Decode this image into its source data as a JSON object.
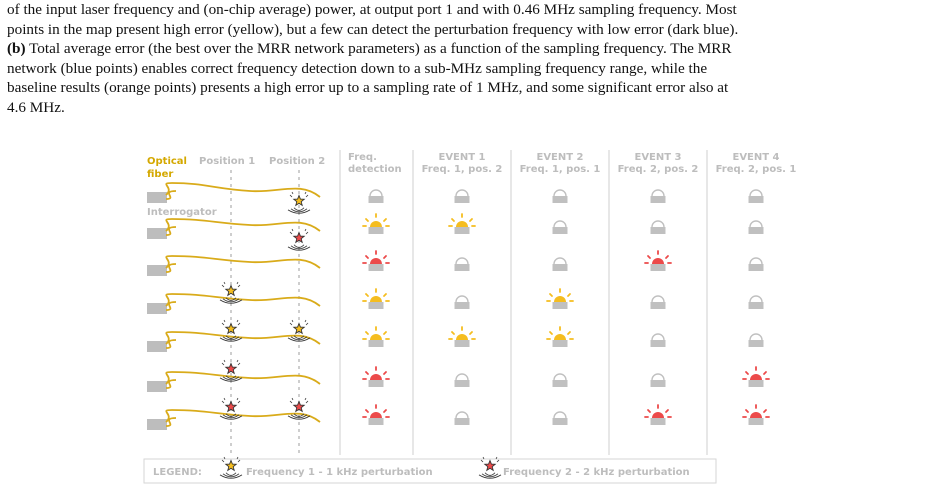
{
  "caption": {
    "line1": "of the input laser frequency and (on-chip average) power, at output port 1 and with 0.46 MHz sampling frequency. Most",
    "line2": "points in the map present high error (yellow), but a few can detect the perturbation frequency with low error (dark blue).",
    "line3_bold": "(b)",
    "line3": " Total average error (the best over the MRR network parameters) as a function of the sampling frequency. The MRR",
    "line4": "network (blue points) enables correct frequency detection down to a sub-MHz sampling frequency range, while the",
    "line5": "baseline results (orange points) presents a high error up to a sampling rate of 1 MHz, and some significant error also at",
    "line6": "4.6 MHz."
  },
  "figure": {
    "headers": {
      "optical_fiber_1": "Optical",
      "optical_fiber_2": "fiber",
      "interrogator": "Interrogator",
      "position1": "Position 1",
      "position2": "Position 2",
      "freq_detection_1": "Freq.",
      "freq_detection_2": "detection",
      "events": [
        {
          "title": "EVENT 1",
          "subtitle": "Freq. 1, pos. 2"
        },
        {
          "title": "EVENT 2",
          "subtitle": "Freq. 1, pos. 1"
        },
        {
          "title": "EVENT 3",
          "subtitle": "Freq. 2, pos. 2"
        },
        {
          "title": "EVENT 4",
          "subtitle": "Freq. 2, pos. 1"
        }
      ]
    },
    "rows": [
      {
        "pos1": "none",
        "pos2": "f1",
        "detect": "f1",
        "events": [
          "f1",
          "off",
          "off",
          "off"
        ]
      },
      {
        "pos1": "none",
        "pos2": "f2",
        "detect": "f2",
        "events": [
          "off",
          "off",
          "f2",
          "off"
        ]
      },
      {
        "pos1": "f1",
        "pos2": "none",
        "detect": "f1",
        "events": [
          "off",
          "f1",
          "off",
          "off"
        ]
      },
      {
        "pos1": "f1",
        "pos2": "f1",
        "detect": "f1",
        "events": [
          "f1",
          "f1",
          "off",
          "off"
        ]
      },
      {
        "pos1": "f2",
        "pos2": "none",
        "detect": "f2",
        "events": [
          "off",
          "off",
          "off",
          "f2"
        ]
      },
      {
        "pos1": "f2",
        "pos2": "f2",
        "detect": "f2",
        "events": [
          "off",
          "off",
          "f2",
          "f2"
        ]
      }
    ],
    "legend": {
      "label": "LEGEND:",
      "item1": "Frequency 1 - 1 kHz perturbation",
      "item2": "Frequency 2 - 2 kHz perturbation"
    },
    "colors": {
      "fiber": "#d9ab1a",
      "f1": "#f5bd1f",
      "f2": "#ec4a4a",
      "off": "#c0c0c0",
      "grid": "#cfcfcf"
    }
  }
}
